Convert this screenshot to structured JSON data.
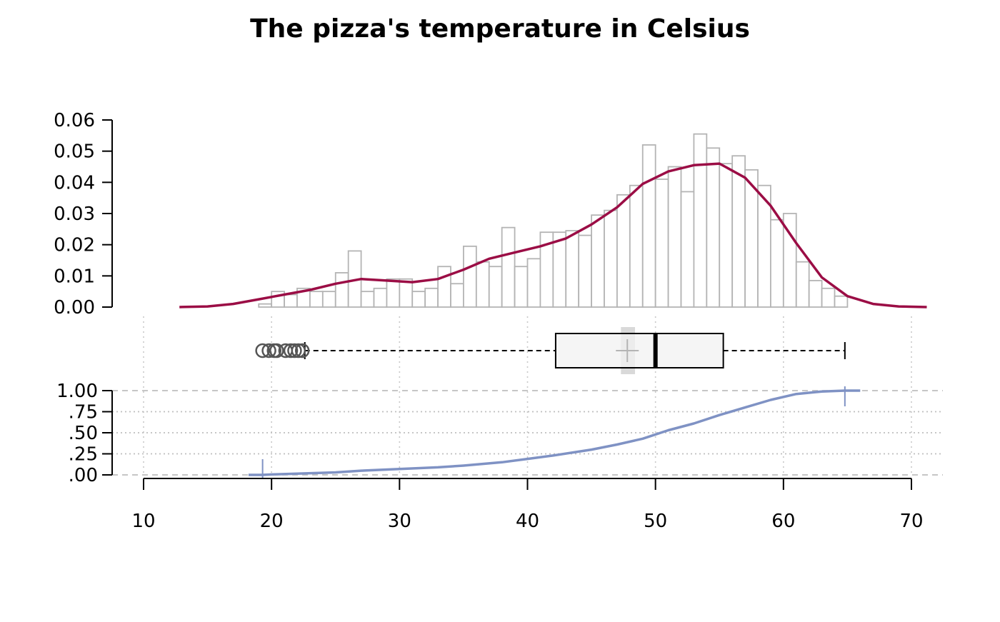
{
  "chart_data": {
    "type": "histogram-boxplot-ecdf",
    "title": "The pizza's temperature in Celsius",
    "xlabel": "",
    "x_ticks": [
      10,
      20,
      30,
      40,
      50,
      60,
      70
    ],
    "xlim": [
      7.6,
      72.4
    ],
    "histogram": {
      "ylabel": "",
      "ylim": [
        0,
        0.06
      ],
      "y_ticks": [
        "0.00",
        "0.01",
        "0.02",
        "0.03",
        "0.04",
        "0.05",
        "0.06"
      ],
      "bin_start": 19,
      "bin_width": 1,
      "densities": [
        0.001,
        0.005,
        0.004,
        0.006,
        0.005,
        0.005,
        0.011,
        0.018,
        0.005,
        0.006,
        0.009,
        0.009,
        0.005,
        0.006,
        0.013,
        0.0075,
        0.0195,
        0.0145,
        0.013,
        0.0255,
        0.013,
        0.0155,
        0.024,
        0.024,
        0.0245,
        0.023,
        0.0295,
        0.031,
        0.036,
        0.039,
        0.052,
        0.041,
        0.045,
        0.037,
        0.0555,
        0.051,
        0.046,
        0.0485,
        0.044,
        0.039,
        0.028,
        0.03,
        0.0145,
        0.0085,
        0.006,
        0.0035
      ]
    },
    "density_curve": {
      "color": "#9b0d45",
      "points": [
        [
          12.8,
          0
        ],
        [
          15,
          0.0002
        ],
        [
          17,
          0.001
        ],
        [
          19,
          0.0025
        ],
        [
          21,
          0.004
        ],
        [
          23,
          0.0055
        ],
        [
          25,
          0.0075
        ],
        [
          27,
          0.009
        ],
        [
          29,
          0.0085
        ],
        [
          31,
          0.008
        ],
        [
          33,
          0.009
        ],
        [
          35,
          0.012
        ],
        [
          37,
          0.0155
        ],
        [
          39,
          0.0175
        ],
        [
          41,
          0.0195
        ],
        [
          43,
          0.022
        ],
        [
          45,
          0.0265
        ],
        [
          47,
          0.032
        ],
        [
          49,
          0.0395
        ],
        [
          51,
          0.0435
        ],
        [
          53,
          0.0455
        ],
        [
          55,
          0.046
        ],
        [
          57,
          0.0415
        ],
        [
          59,
          0.0325
        ],
        [
          61,
          0.0205
        ],
        [
          63,
          0.0095
        ],
        [
          65,
          0.0035
        ],
        [
          67,
          0.001
        ],
        [
          69,
          0.0002
        ],
        [
          71.2,
          0
        ]
      ]
    },
    "boxplot": {
      "q1": 42.2,
      "median": 50.0,
      "q3": 55.3,
      "whisker_low": 22.6,
      "whisker_high": 64.8,
      "mean": 47.8,
      "mean_ci": [
        47.3,
        48.4
      ],
      "outliers": [
        19.3,
        19.8,
        20.2,
        20.4,
        21.1,
        21.5,
        21.8,
        22.1,
        22.4
      ]
    },
    "ecdf": {
      "color": "#7f92c4",
      "ylim": [
        0,
        1
      ],
      "y_ticks": [
        ".00",
        ".25",
        ".50",
        ".75",
        "1.00"
      ],
      "x_min": 19.3,
      "x_max": 64.8,
      "points": [
        [
          18.2,
          0
        ],
        [
          19.3,
          0
        ],
        [
          20,
          0.005
        ],
        [
          22,
          0.015
        ],
        [
          25,
          0.03
        ],
        [
          27,
          0.05
        ],
        [
          30,
          0.07
        ],
        [
          33,
          0.09
        ],
        [
          35,
          0.11
        ],
        [
          38,
          0.15
        ],
        [
          40,
          0.19
        ],
        [
          42,
          0.23
        ],
        [
          45,
          0.3
        ],
        [
          47,
          0.36
        ],
        [
          49,
          0.43
        ],
        [
          51,
          0.53
        ],
        [
          53,
          0.61
        ],
        [
          55,
          0.71
        ],
        [
          57,
          0.8
        ],
        [
          59,
          0.89
        ],
        [
          61,
          0.96
        ],
        [
          63,
          0.99
        ],
        [
          64.8,
          1
        ],
        [
          66,
          1
        ]
      ]
    }
  }
}
